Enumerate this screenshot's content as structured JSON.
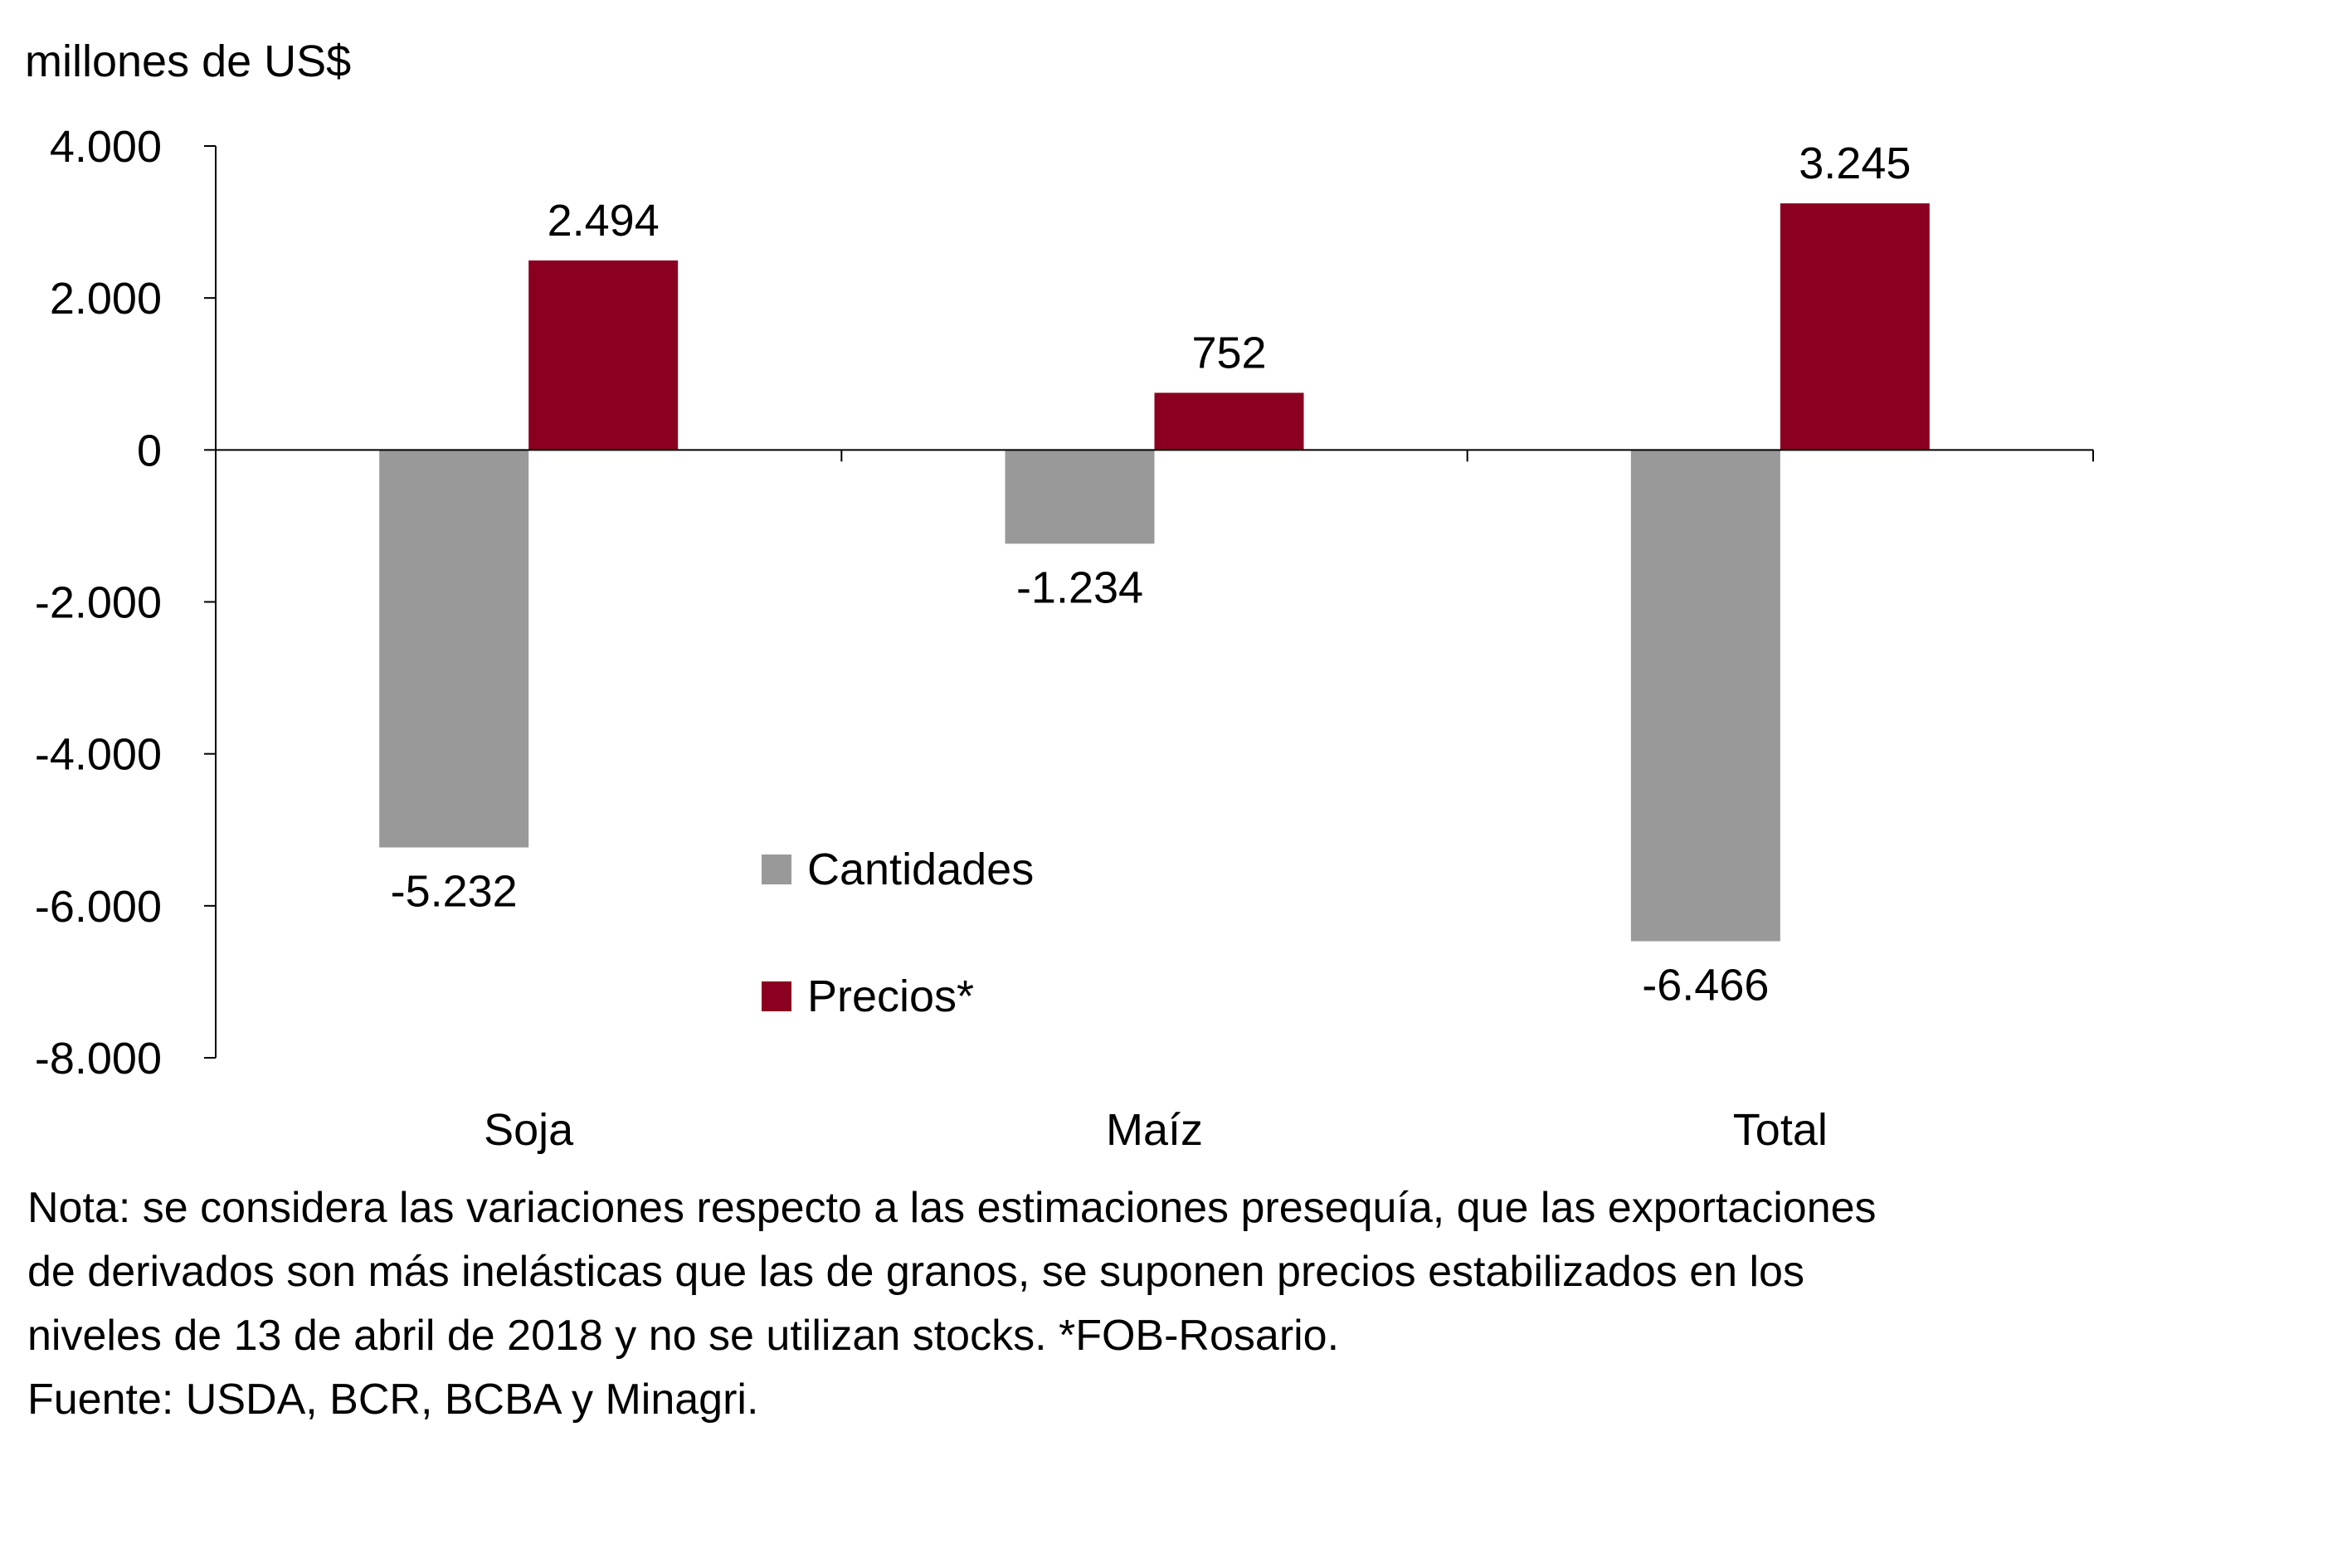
{
  "chart_data": {
    "type": "bar",
    "ylabel": "millones de US$",
    "categories": [
      "Soja",
      "Maíz",
      "Total"
    ],
    "series": [
      {
        "name": "Cantidades",
        "color": "#999999",
        "values": [
          -5232,
          -1234,
          -6466
        ],
        "labels": [
          "-5.232",
          "-1.234",
          "-6.466"
        ]
      },
      {
        "name": "Precios*",
        "color": "#8B0020",
        "values": [
          2494,
          752,
          3245
        ],
        "labels": [
          "2.494",
          "752",
          "3.245"
        ]
      }
    ],
    "ylim": [
      -8000,
      4000
    ],
    "yticks": [
      4000,
      2000,
      0,
      -2000,
      -4000,
      -6000,
      -8000
    ],
    "ytick_labels": [
      "4.000",
      "2.000",
      "0",
      "-2.000",
      "-4.000",
      "-6.000",
      "-8.000"
    ],
    "grid": false,
    "legend_position": "center"
  },
  "notes": [
    "Nota: se considera las variaciones respecto a las estimaciones presequía, que las exportaciones",
    "de derivados son más inelásticas que las de granos, se suponen precios estabilizados en los",
    "niveles de 13 de abril de 2018 y no se utilizan stocks. *FOB-Rosario.",
    "Fuente: USDA, BCR, BCBA y Minagri."
  ]
}
